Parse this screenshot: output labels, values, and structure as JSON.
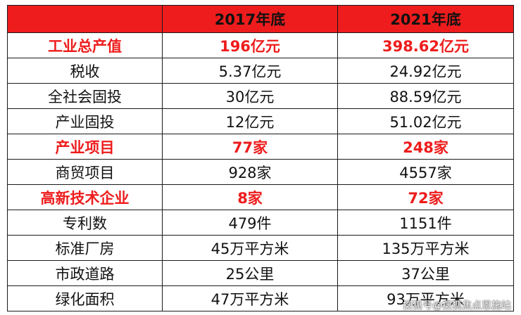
{
  "header": {
    "blank": "",
    "col_2017": "2017年底",
    "col_2021": "2021年底"
  },
  "accent_color": "#ee1c1c",
  "rows": [
    {
      "label": "工业总产值",
      "v2017": "196亿元",
      "v2021": "398.62亿元",
      "highlight": true
    },
    {
      "label": "税收",
      "v2017": "5.37亿元",
      "v2021": "24.92亿元",
      "highlight": false
    },
    {
      "label": "全社会固投",
      "v2017": "30亿元",
      "v2021": "88.59亿元",
      "highlight": false
    },
    {
      "label": "产业固投",
      "v2017": "12亿元",
      "v2021": "51.02亿元",
      "highlight": false
    },
    {
      "label": "产业项目",
      "v2017": "77家",
      "v2021": "248家",
      "highlight": true
    },
    {
      "label": "商贸项目",
      "v2017": "928家",
      "v2021": "4557家",
      "highlight": false
    },
    {
      "label": "高新技术企业",
      "v2017": "8家",
      "v2021": "72家",
      "highlight": true
    },
    {
      "label": "专利数",
      "v2017": "479件",
      "v2021": "1151件",
      "highlight": false
    },
    {
      "label": "标准厂房",
      "v2017": "45万平方米",
      "v2021": "135万平方米",
      "highlight": false
    },
    {
      "label": "市政道路",
      "v2017": "25公里",
      "v2021": "37公里",
      "highlight": false
    },
    {
      "label": "绿化面积",
      "v2017": "47万平方米",
      "v2021": "93万平方米",
      "highlight": false
    }
  ],
  "watermark": "搜狐号@搜狐焦点恩施站"
}
